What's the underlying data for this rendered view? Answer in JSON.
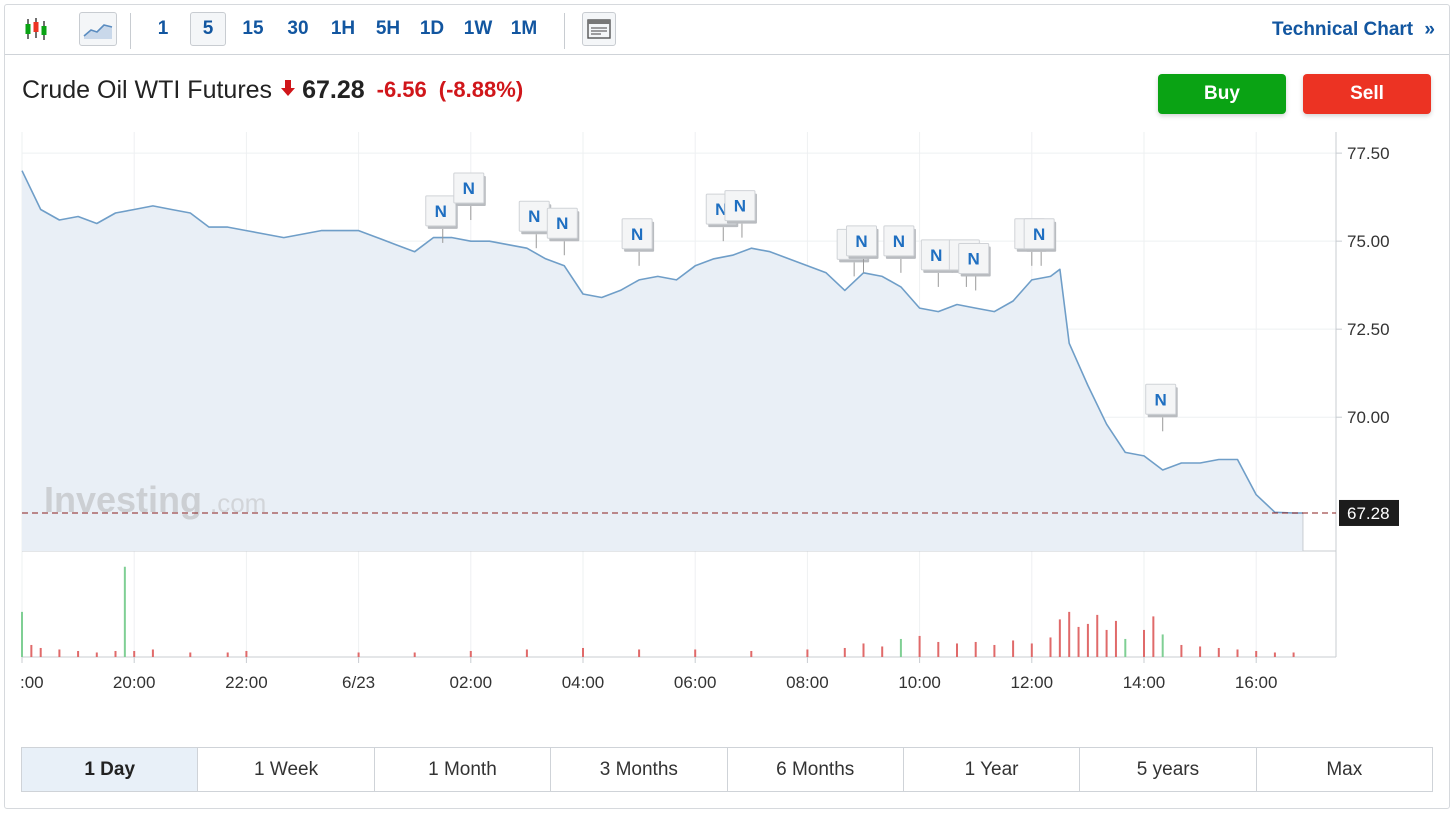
{
  "toolbar": {
    "intervals": [
      "1",
      "5",
      "15",
      "30",
      "1H",
      "5H",
      "1D",
      "1W",
      "1M"
    ],
    "active_interval": "5",
    "technical_chart_label": "Technical Chart",
    "technical_chart_chevron": "»"
  },
  "instrument": {
    "name": "Crude Oil WTI Futures",
    "price": "67.28",
    "change": "-6.56",
    "change_pct": "(-8.88%)",
    "direction": "down"
  },
  "actions": {
    "buy_label": "Buy",
    "sell_label": "Sell"
  },
  "colors": {
    "line": "#6f9ec8",
    "area": "#e9eff6",
    "up_volume": "#7fcf94",
    "down_volume": "#e06a6a",
    "buy": "#0aa314",
    "sell": "#ec3323",
    "link": "#1256a0",
    "negative": "#d0161a"
  },
  "watermark": {
    "brand": "Investing",
    "suffix": ".com"
  },
  "chart_data": {
    "type": "area",
    "x_ticks": [
      ":00",
      "20:00",
      "22:00",
      "6/23",
      "02:00",
      "04:00",
      "06:00",
      "08:00",
      "10:00",
      "12:00",
      "14:00",
      "16:00"
    ],
    "y_ticks": [
      "77.50",
      "75.00",
      "72.50",
      "70.00"
    ],
    "ylim": [
      66.2,
      78.1
    ],
    "last_value_label": "67.28",
    "last_value": 67.28,
    "x": [
      "18:00",
      "18:20",
      "18:40",
      "19:00",
      "19:20",
      "19:40",
      "20:00",
      "20:20",
      "20:40",
      "21:00",
      "21:20",
      "21:40",
      "22:00",
      "22:20",
      "22:40",
      "23:00",
      "23:20",
      "23:40",
      "00:00",
      "00:20",
      "00:40",
      "01:00",
      "01:20",
      "01:40",
      "02:00",
      "02:20",
      "02:40",
      "03:00",
      "03:20",
      "03:40",
      "04:00",
      "04:20",
      "04:40",
      "05:00",
      "05:20",
      "05:40",
      "06:00",
      "06:20",
      "06:40",
      "07:00",
      "07:20",
      "07:40",
      "08:00",
      "08:20",
      "08:40",
      "09:00",
      "09:20",
      "09:40",
      "10:00",
      "10:20",
      "10:40",
      "11:00",
      "11:20",
      "11:40",
      "12:00",
      "12:20",
      "12:30",
      "12:40",
      "13:00",
      "13:20",
      "13:40",
      "14:00",
      "14:20",
      "14:40",
      "15:00",
      "15:20",
      "15:40",
      "16:00",
      "16:20",
      "16:40",
      "16:50"
    ],
    "values": [
      77.0,
      75.9,
      75.6,
      75.7,
      75.5,
      75.8,
      75.9,
      76.0,
      75.9,
      75.8,
      75.4,
      75.4,
      75.3,
      75.2,
      75.1,
      75.2,
      75.3,
      75.3,
      75.3,
      75.1,
      74.9,
      74.7,
      75.1,
      75.1,
      75.0,
      75.0,
      74.9,
      74.8,
      74.5,
      74.3,
      73.5,
      73.4,
      73.6,
      73.9,
      74.0,
      73.9,
      74.3,
      74.5,
      74.6,
      74.8,
      74.7,
      74.5,
      74.3,
      74.1,
      73.6,
      74.1,
      74.0,
      73.7,
      73.1,
      73.0,
      73.2,
      73.1,
      73.0,
      73.3,
      73.9,
      74.0,
      74.2,
      72.1,
      70.9,
      69.8,
      69.0,
      68.9,
      68.5,
      68.7,
      68.7,
      68.8,
      68.8,
      67.8,
      67.3,
      67.28,
      67.28
    ],
    "news_markers": [
      {
        "x": "01:30",
        "value": 74.95
      },
      {
        "x": "02:00",
        "value": 75.6
      },
      {
        "x": "03:10",
        "value": 74.8
      },
      {
        "x": "03:40",
        "value": 74.6
      },
      {
        "x": "05:00",
        "value": 74.3
      },
      {
        "x": "06:30",
        "value": 75.0
      },
      {
        "x": "06:50",
        "value": 75.1
      },
      {
        "x": "08:50",
        "value": 74.0
      },
      {
        "x": "09:00",
        "value": 74.1
      },
      {
        "x": "09:40",
        "value": 74.1
      },
      {
        "x": "10:20",
        "value": 73.7
      },
      {
        "x": "10:50",
        "value": 73.7
      },
      {
        "x": "11:00",
        "value": 73.6
      },
      {
        "x": "12:00",
        "value": 74.3
      },
      {
        "x": "12:10",
        "value": 74.3
      },
      {
        "x": "14:20",
        "value": 69.6
      }
    ],
    "news_label": "N",
    "volume_x": [
      "18:00",
      "18:10",
      "18:20",
      "18:40",
      "19:00",
      "19:20",
      "19:40",
      "19:50",
      "20:00",
      "20:20",
      "21:00",
      "21:40",
      "22:00",
      "00:00",
      "01:00",
      "02:00",
      "03:00",
      "04:00",
      "05:00",
      "06:00",
      "07:00",
      "08:00",
      "08:40",
      "09:00",
      "09:20",
      "09:40",
      "10:00",
      "10:20",
      "10:40",
      "11:00",
      "11:20",
      "11:40",
      "12:00",
      "12:20",
      "12:30",
      "12:40",
      "12:50",
      "13:00",
      "13:10",
      "13:20",
      "13:30",
      "13:40",
      "14:00",
      "14:10",
      "14:20",
      "14:40",
      "15:00",
      "15:20",
      "15:40",
      "16:00",
      "16:20",
      "16:40"
    ],
    "volume_values": [
      0.3,
      0.08,
      0.06,
      0.05,
      0.04,
      0.03,
      0.04,
      0.6,
      0.04,
      0.05,
      0.03,
      0.03,
      0.04,
      0.03,
      0.03,
      0.04,
      0.05,
      0.06,
      0.05,
      0.05,
      0.04,
      0.05,
      0.06,
      0.09,
      0.07,
      0.12,
      0.14,
      0.1,
      0.09,
      0.1,
      0.08,
      0.11,
      0.09,
      0.13,
      0.25,
      0.3,
      0.2,
      0.22,
      0.28,
      0.18,
      0.24,
      0.12,
      0.18,
      0.27,
      0.15,
      0.08,
      0.07,
      0.06,
      0.05,
      0.04,
      0.03,
      0.03
    ],
    "volume_up": [
      true,
      false,
      false,
      false,
      false,
      false,
      false,
      true,
      false,
      false,
      false,
      false,
      false,
      false,
      false,
      false,
      false,
      false,
      false,
      false,
      false,
      false,
      false,
      false,
      false,
      true,
      false,
      false,
      false,
      false,
      false,
      false,
      false,
      false,
      false,
      false,
      false,
      false,
      false,
      false,
      false,
      true,
      false,
      false,
      true,
      false,
      false,
      false,
      false,
      false,
      false,
      false
    ]
  },
  "ranges": [
    "1 Day",
    "1 Week",
    "1 Month",
    "3 Months",
    "6 Months",
    "1 Year",
    "5 years",
    "Max"
  ],
  "active_range": "1 Day"
}
